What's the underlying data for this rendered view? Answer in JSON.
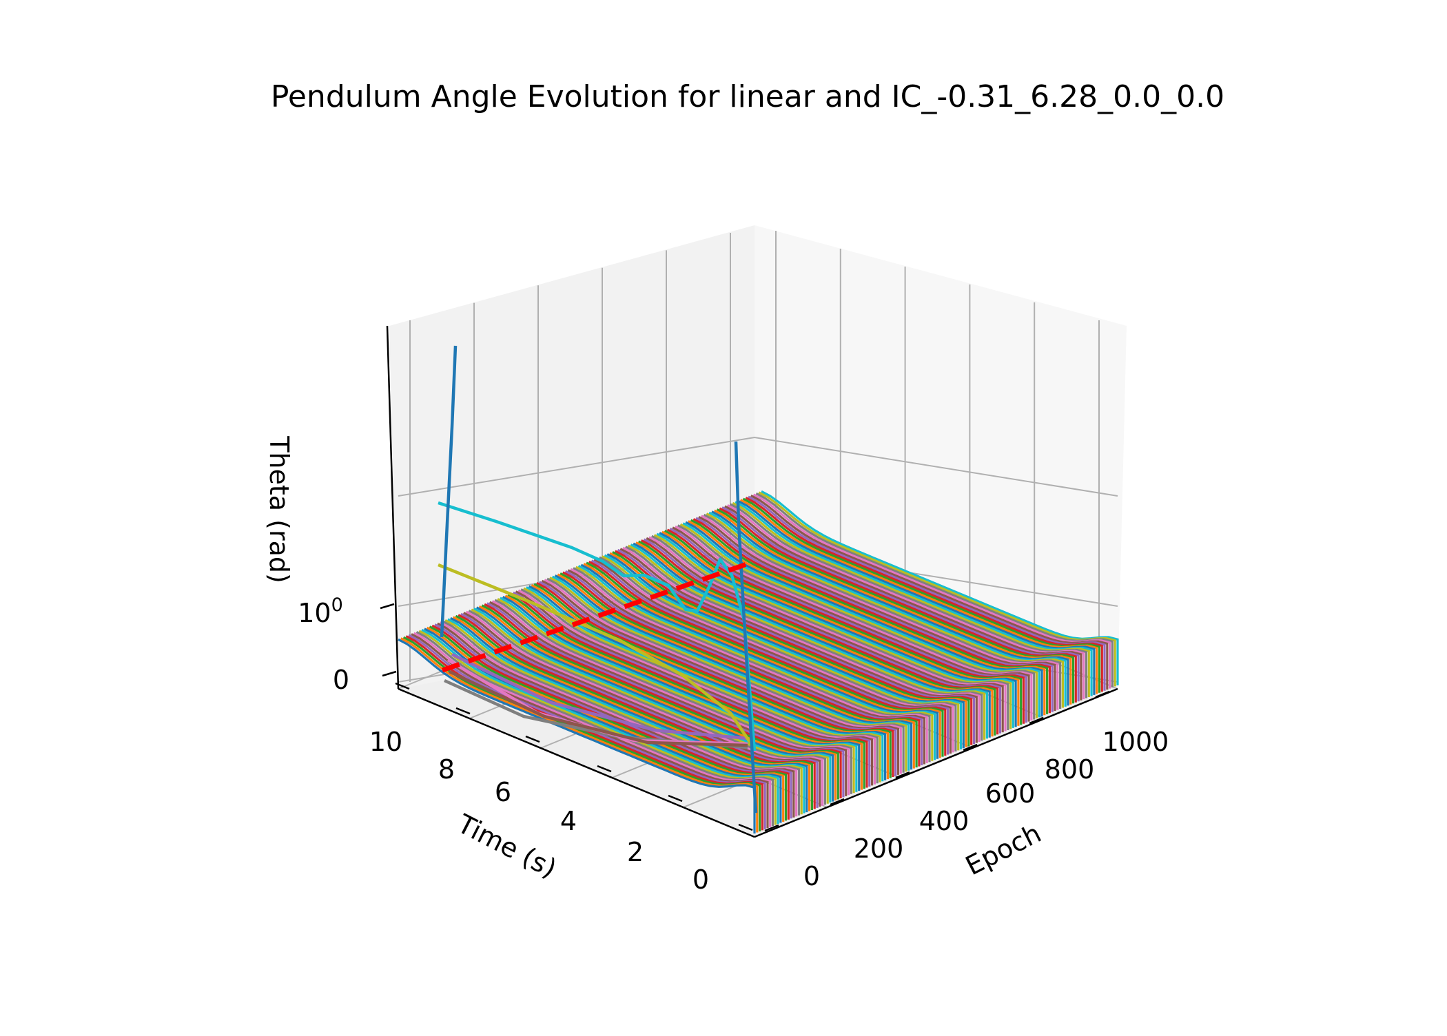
{
  "chart_data": {
    "type": "line3d",
    "title": "Pendulum Angle Evolution for linear and IC_-0.31_6.28_0.0_0.0",
    "xlabel": "Epoch",
    "ylabel": "Time (s)",
    "zlabel": "Theta (rad)",
    "xticks": [
      "0",
      "200",
      "400",
      "600",
      "800",
      "1000"
    ],
    "yticks": [
      "0",
      "2",
      "4",
      "6",
      "8",
      "10"
    ],
    "zticks": [
      {
        "base": "0",
        "exp": ""
      },
      {
        "base": "10",
        "exp": "0"
      }
    ],
    "zscale": "symlog",
    "xlim": [
      0,
      1000
    ],
    "ylim": [
      0,
      10
    ],
    "grid": true,
    "reference_line": {
      "style": "dashed",
      "color": "#ff0000"
    },
    "palette": [
      "#1f77b4",
      "#ff7f0e",
      "#2ca02c",
      "#d62728",
      "#9467bd",
      "#8c564b",
      "#e377c2",
      "#7f7f7f",
      "#bcbd22",
      "#17becf"
    ]
  }
}
